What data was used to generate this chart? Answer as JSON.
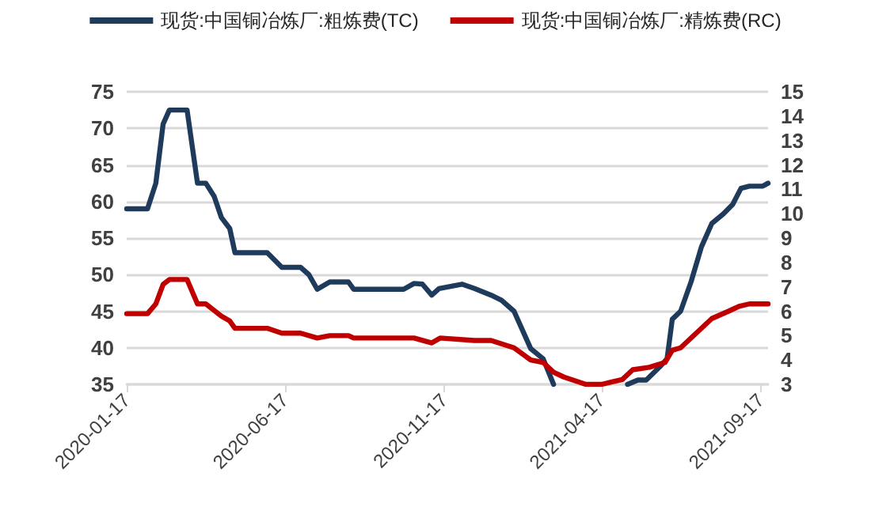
{
  "chart_data": {
    "type": "line",
    "xlim": [
      "2020-01-17",
      "2021-09-24"
    ],
    "xticks": [
      "2020-01-17",
      "2020-06-17",
      "2020-11-17",
      "2021-04-17",
      "2021-09-17"
    ],
    "ylim": [
      35,
      75
    ],
    "yticks": [
      35,
      40,
      45,
      50,
      55,
      60,
      65,
      70,
      75
    ],
    "y2lim": [
      3,
      15
    ],
    "y2ticks": [
      3,
      4,
      5,
      6,
      7,
      8,
      9,
      10,
      11,
      12,
      13,
      14,
      15
    ],
    "grid": "y",
    "legend": "top",
    "marker": "none",
    "line_style": "solid",
    "series": [
      {
        "name": "现货:中国铜冶炼厂:粗炼费(TC)",
        "color": "#1f3b5c",
        "x": [
          "2020-01-17",
          "2020-02-06",
          "2020-02-14",
          "2020-02-21",
          "2020-02-27",
          "2020-03-15",
          "2020-03-25",
          "2020-04-02",
          "2020-04-10",
          "2020-04-17",
          "2020-04-25",
          "2020-04-30",
          "2020-05-31",
          "2020-06-14",
          "2020-07-02",
          "2020-07-10",
          "2020-07-18",
          "2020-07-30",
          "2020-08-17",
          "2020-08-22",
          "2020-10-09",
          "2020-10-19",
          "2020-10-27",
          "2020-11-05",
          "2020-11-12",
          "2020-12-04",
          "2020-12-16",
          "2021-01-01",
          "2021-01-11",
          "2021-01-23",
          "2021-02-08",
          "2021-02-20",
          "2021-03-02",
          "2021-04-15",
          "2021-05-12",
          "2021-05-22",
          "2021-05-30",
          "2021-06-12",
          "2021-06-19",
          "2021-06-24",
          "2021-07-02",
          "2021-07-12",
          "2021-07-22",
          "2021-08-01",
          "2021-08-12",
          "2021-08-21",
          "2021-08-29",
          "2021-09-06",
          "2021-09-19",
          "2021-09-24"
        ],
        "values": [
          59,
          59,
          62.5,
          70.6,
          72.5,
          72.5,
          62.5,
          62.5,
          60.7,
          57.8,
          56.3,
          53,
          53,
          51,
          51,
          50,
          48,
          49,
          49,
          48,
          48,
          48.8,
          48.7,
          47.2,
          48.1,
          48.7,
          48.1,
          47.2,
          46.5,
          45,
          39.9,
          38.5,
          35,
          null,
          35,
          35.6,
          35.6,
          37.4,
          38.5,
          43.9,
          45,
          49,
          53.8,
          57,
          58.3,
          59.6,
          61.8,
          62.1,
          62.1,
          62.5
        ]
      },
      {
        "name": "现货:中国铜冶炼厂:精炼费(RC)",
        "color": "#c00000",
        "axis": "y2",
        "x": [
          "2020-01-17",
          "2020-02-06",
          "2020-02-14",
          "2020-02-21",
          "2020-02-27",
          "2020-03-15",
          "2020-03-25",
          "2020-04-02",
          "2020-04-17",
          "2020-04-25",
          "2020-04-30",
          "2020-05-31",
          "2020-06-14",
          "2020-07-02",
          "2020-07-18",
          "2020-07-30",
          "2020-08-17",
          "2020-08-22",
          "2020-10-19",
          "2020-11-05",
          "2020-11-13",
          "2020-12-16",
          "2021-01-01",
          "2021-01-23",
          "2021-02-08",
          "2021-02-20",
          "2021-03-02",
          "2021-03-12",
          "2021-04-02",
          "2021-04-17",
          "2021-04-27",
          "2021-05-07",
          "2021-05-17",
          "2021-06-02",
          "2021-06-17",
          "2021-06-24",
          "2021-07-02",
          "2021-07-17",
          "2021-08-01",
          "2021-08-17",
          "2021-08-27",
          "2021-09-06",
          "2021-09-24"
        ],
        "values": [
          5.9,
          5.9,
          6.3,
          7.1,
          7.3,
          7.3,
          6.3,
          6.3,
          5.8,
          5.6,
          5.3,
          5.3,
          5.1,
          5.1,
          4.9,
          5.0,
          5.0,
          4.9,
          4.9,
          4.7,
          4.9,
          4.8,
          4.8,
          4.5,
          4.0,
          3.9,
          3.5,
          3.3,
          3.0,
          3.0,
          3.1,
          3.2,
          3.6,
          3.7,
          3.9,
          4.4,
          4.5,
          5.1,
          5.7,
          6.0,
          6.2,
          6.3,
          6.3
        ]
      }
    ]
  }
}
